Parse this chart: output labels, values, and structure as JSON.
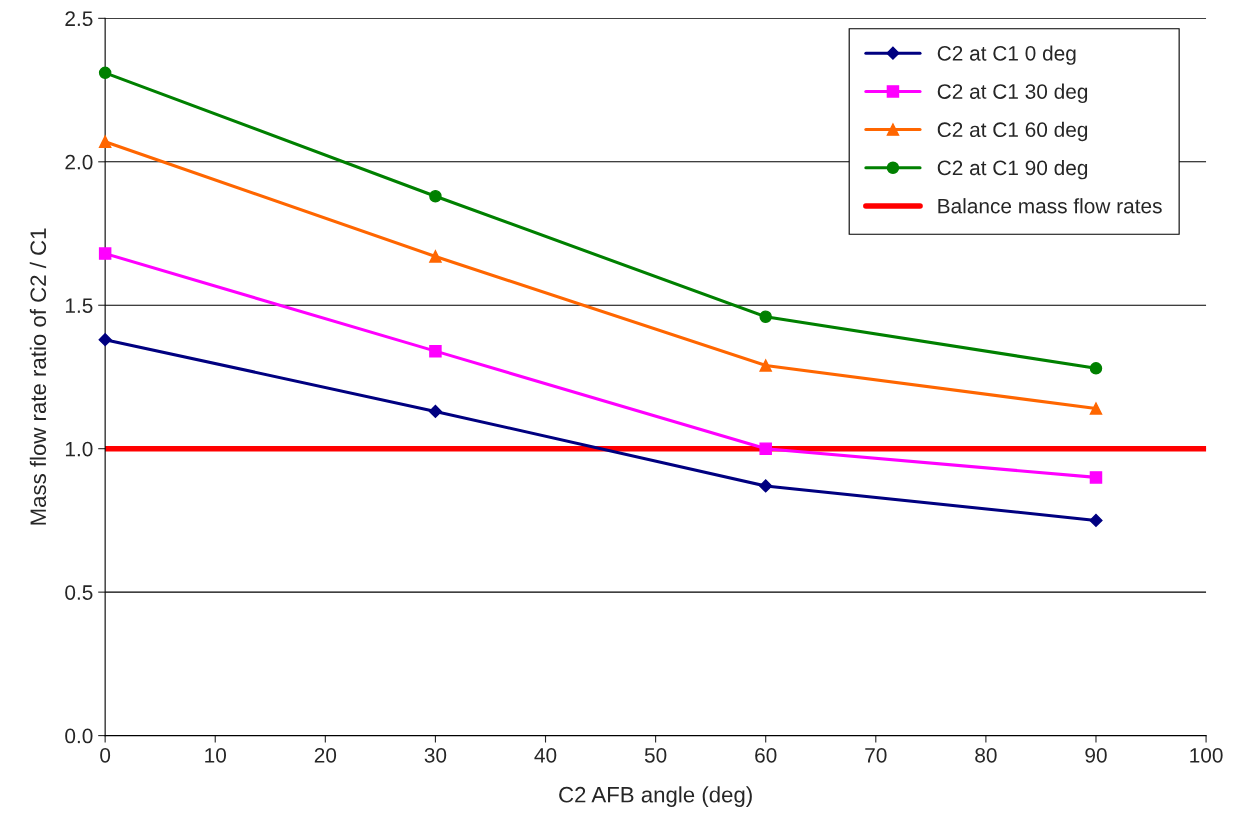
{
  "chart_data": {
    "type": "line",
    "xlabel": "C2 AFB angle (deg)",
    "ylabel": "Mass flow rate ratio of C2 / C1",
    "x": [
      0,
      30,
      60,
      90
    ],
    "series": [
      {
        "name": "C2 at C1 0 deg",
        "color": "#000080",
        "marker": "diamond",
        "values": [
          1.38,
          1.13,
          0.87,
          0.75
        ]
      },
      {
        "name": "C2 at C1 30 deg",
        "color": "#ff00ff",
        "marker": "square",
        "values": [
          1.68,
          1.34,
          1.0,
          0.9
        ]
      },
      {
        "name": "C2 at C1 60 deg",
        "color": "#ff6600",
        "marker": "triangle",
        "values": [
          2.07,
          1.67,
          1.29,
          1.14
        ]
      },
      {
        "name": "C2 at C1 90 deg",
        "color": "#008000",
        "marker": "circle",
        "values": [
          2.31,
          1.88,
          1.46,
          1.28
        ]
      }
    ],
    "ref_lines": [
      {
        "axis": "y",
        "value": 1.0,
        "label": "Balance mass flow rates",
        "color": "#ff0000",
        "line_style": "solid"
      }
    ],
    "xlim": [
      0,
      100
    ],
    "xticks": [
      0,
      10,
      20,
      30,
      40,
      50,
      60,
      70,
      80,
      90,
      100
    ],
    "ylim": [
      0,
      2.5
    ],
    "yticks": [
      {
        "value": 0,
        "label": "0.0"
      },
      {
        "value": 0.5,
        "label": "0.5"
      },
      {
        "value": 1.0,
        "label": "1.0"
      },
      {
        "value": 1.5,
        "label": "1.5"
      },
      {
        "value": 2.0,
        "label": "2.0"
      },
      {
        "value": 2.5,
        "label": "2.5"
      }
    ],
    "grid": "y",
    "legend": "top right",
    "line_style": "solid"
  }
}
